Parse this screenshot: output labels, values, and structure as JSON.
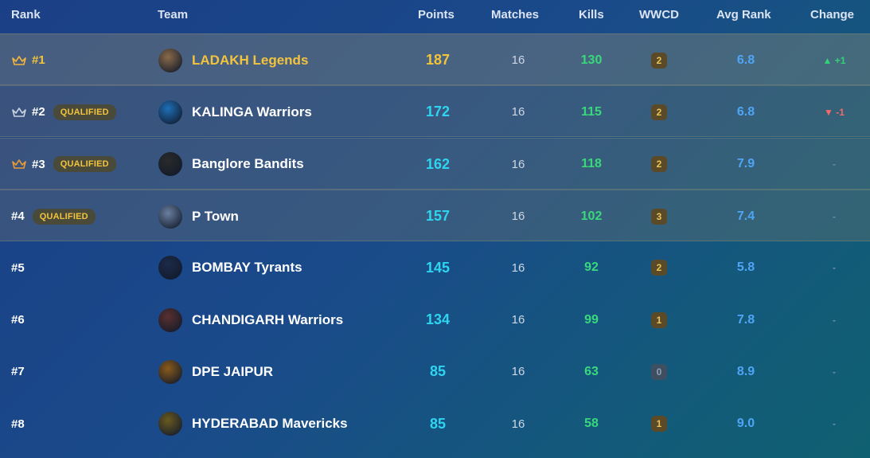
{
  "headers": {
    "rank": "Rank",
    "team": "Team",
    "points": "Points",
    "matches": "Matches",
    "kills": "Kills",
    "wwcd": "WWCD",
    "avg_rank": "Avg Rank",
    "change": "Change"
  },
  "qualified_label": "QUALIFIED",
  "rows": [
    {
      "rank": "#1",
      "team": "LADAKH Legends",
      "points": "187",
      "matches": "16",
      "kills": "130",
      "wwcd": "2",
      "avg": "6.8",
      "change": "▲ +1",
      "qualified": false,
      "crown": "gold",
      "logo_color": "#8a6a4a"
    },
    {
      "rank": "#2",
      "team": "KALINGA Warriors",
      "points": "172",
      "matches": "16",
      "kills": "115",
      "wwcd": "2",
      "avg": "6.8",
      "change": "▼ -1",
      "qualified": true,
      "crown": "silver",
      "logo_color": "#1e6fb8"
    },
    {
      "rank": "#3",
      "team": "Banglore Bandits",
      "points": "162",
      "matches": "16",
      "kills": "118",
      "wwcd": "2",
      "avg": "7.9",
      "change": "-",
      "qualified": true,
      "crown": "bronze",
      "logo_color": "#2a2a2a"
    },
    {
      "rank": "#4",
      "team": "P Town",
      "points": "157",
      "matches": "16",
      "kills": "102",
      "wwcd": "3",
      "avg": "7.4",
      "change": "-",
      "qualified": true,
      "crown": "",
      "logo_color": "#6a7fa0"
    },
    {
      "rank": "#5",
      "team": "BOMBAY Tyrants",
      "points": "145",
      "matches": "16",
      "kills": "92",
      "wwcd": "2",
      "avg": "5.8",
      "change": "-",
      "qualified": false,
      "crown": "",
      "logo_color": "#1c2a4a"
    },
    {
      "rank": "#6",
      "team": "CHANDIGARH Warriors",
      "points": "134",
      "matches": "16",
      "kills": "99",
      "wwcd": "1",
      "avg": "7.8",
      "change": "-",
      "qualified": false,
      "crown": "",
      "logo_color": "#5a3030"
    },
    {
      "rank": "#7",
      "team": "DPE JAIPUR",
      "points": "85",
      "matches": "16",
      "kills": "63",
      "wwcd": "0",
      "avg": "8.9",
      "change": "-",
      "qualified": false,
      "crown": "",
      "logo_color": "#8a5a1a"
    },
    {
      "rank": "#8",
      "team": "HYDERABAD Mavericks",
      "points": "85",
      "matches": "16",
      "kills": "58",
      "wwcd": "1",
      "avg": "9.0",
      "change": "-",
      "qualified": false,
      "crown": "",
      "logo_color": "#6a5a20"
    }
  ],
  "colors": {
    "gold": "#f2c43d",
    "points": "#2fd4f0",
    "kills": "#39d87a",
    "avg": "#4fa5f5"
  }
}
